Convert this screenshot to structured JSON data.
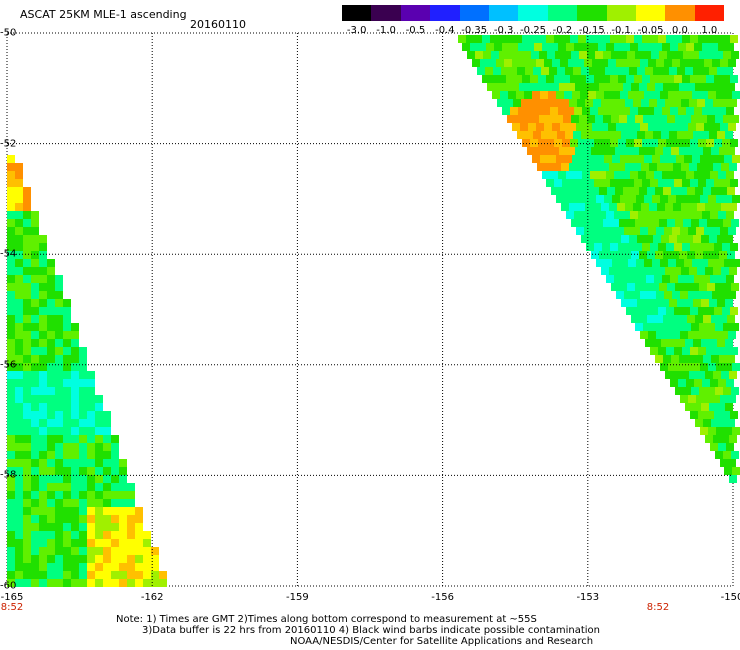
{
  "title": "ASCAT 25KM MLE-1 ascending",
  "date": "20160110",
  "colorbar": {
    "labels": [
      "-3.0",
      "-1.0",
      "-0.5",
      "-0.4",
      "-0.35",
      "-0.3",
      "-0.25",
      "-0.2",
      "-0.15",
      "-0.1",
      "-0.05",
      "0.0",
      "1.0"
    ],
    "colors": [
      "#000000",
      "#3a0050",
      "#5a00b0",
      "#2020ff",
      "#0070ff",
      "#00c0ff",
      "#00ffe0",
      "#00ff80",
      "#20e000",
      "#a0f000",
      "#ffff00",
      "#ff9000",
      "#ff2000"
    ]
  },
  "lat_labels": [
    "-50",
    "-52",
    "-54",
    "-56",
    "-58",
    "-60"
  ],
  "lon_labels": [
    "-165",
    "-162",
    "-159",
    "-156",
    "-153",
    "-150"
  ],
  "time_labels": [
    "8:52",
    "8:52"
  ],
  "notes": {
    "line1": "Note: 1) Times are GMT 2)Times along bottom correspond to measurement at ~55S",
    "line2": "3)Data buffer is 22 hrs from 20160110 4) Black wind barbs indicate possible contamination",
    "line3": "NOAA/NESDIS/Center for Satellite Applications and Research"
  }
}
